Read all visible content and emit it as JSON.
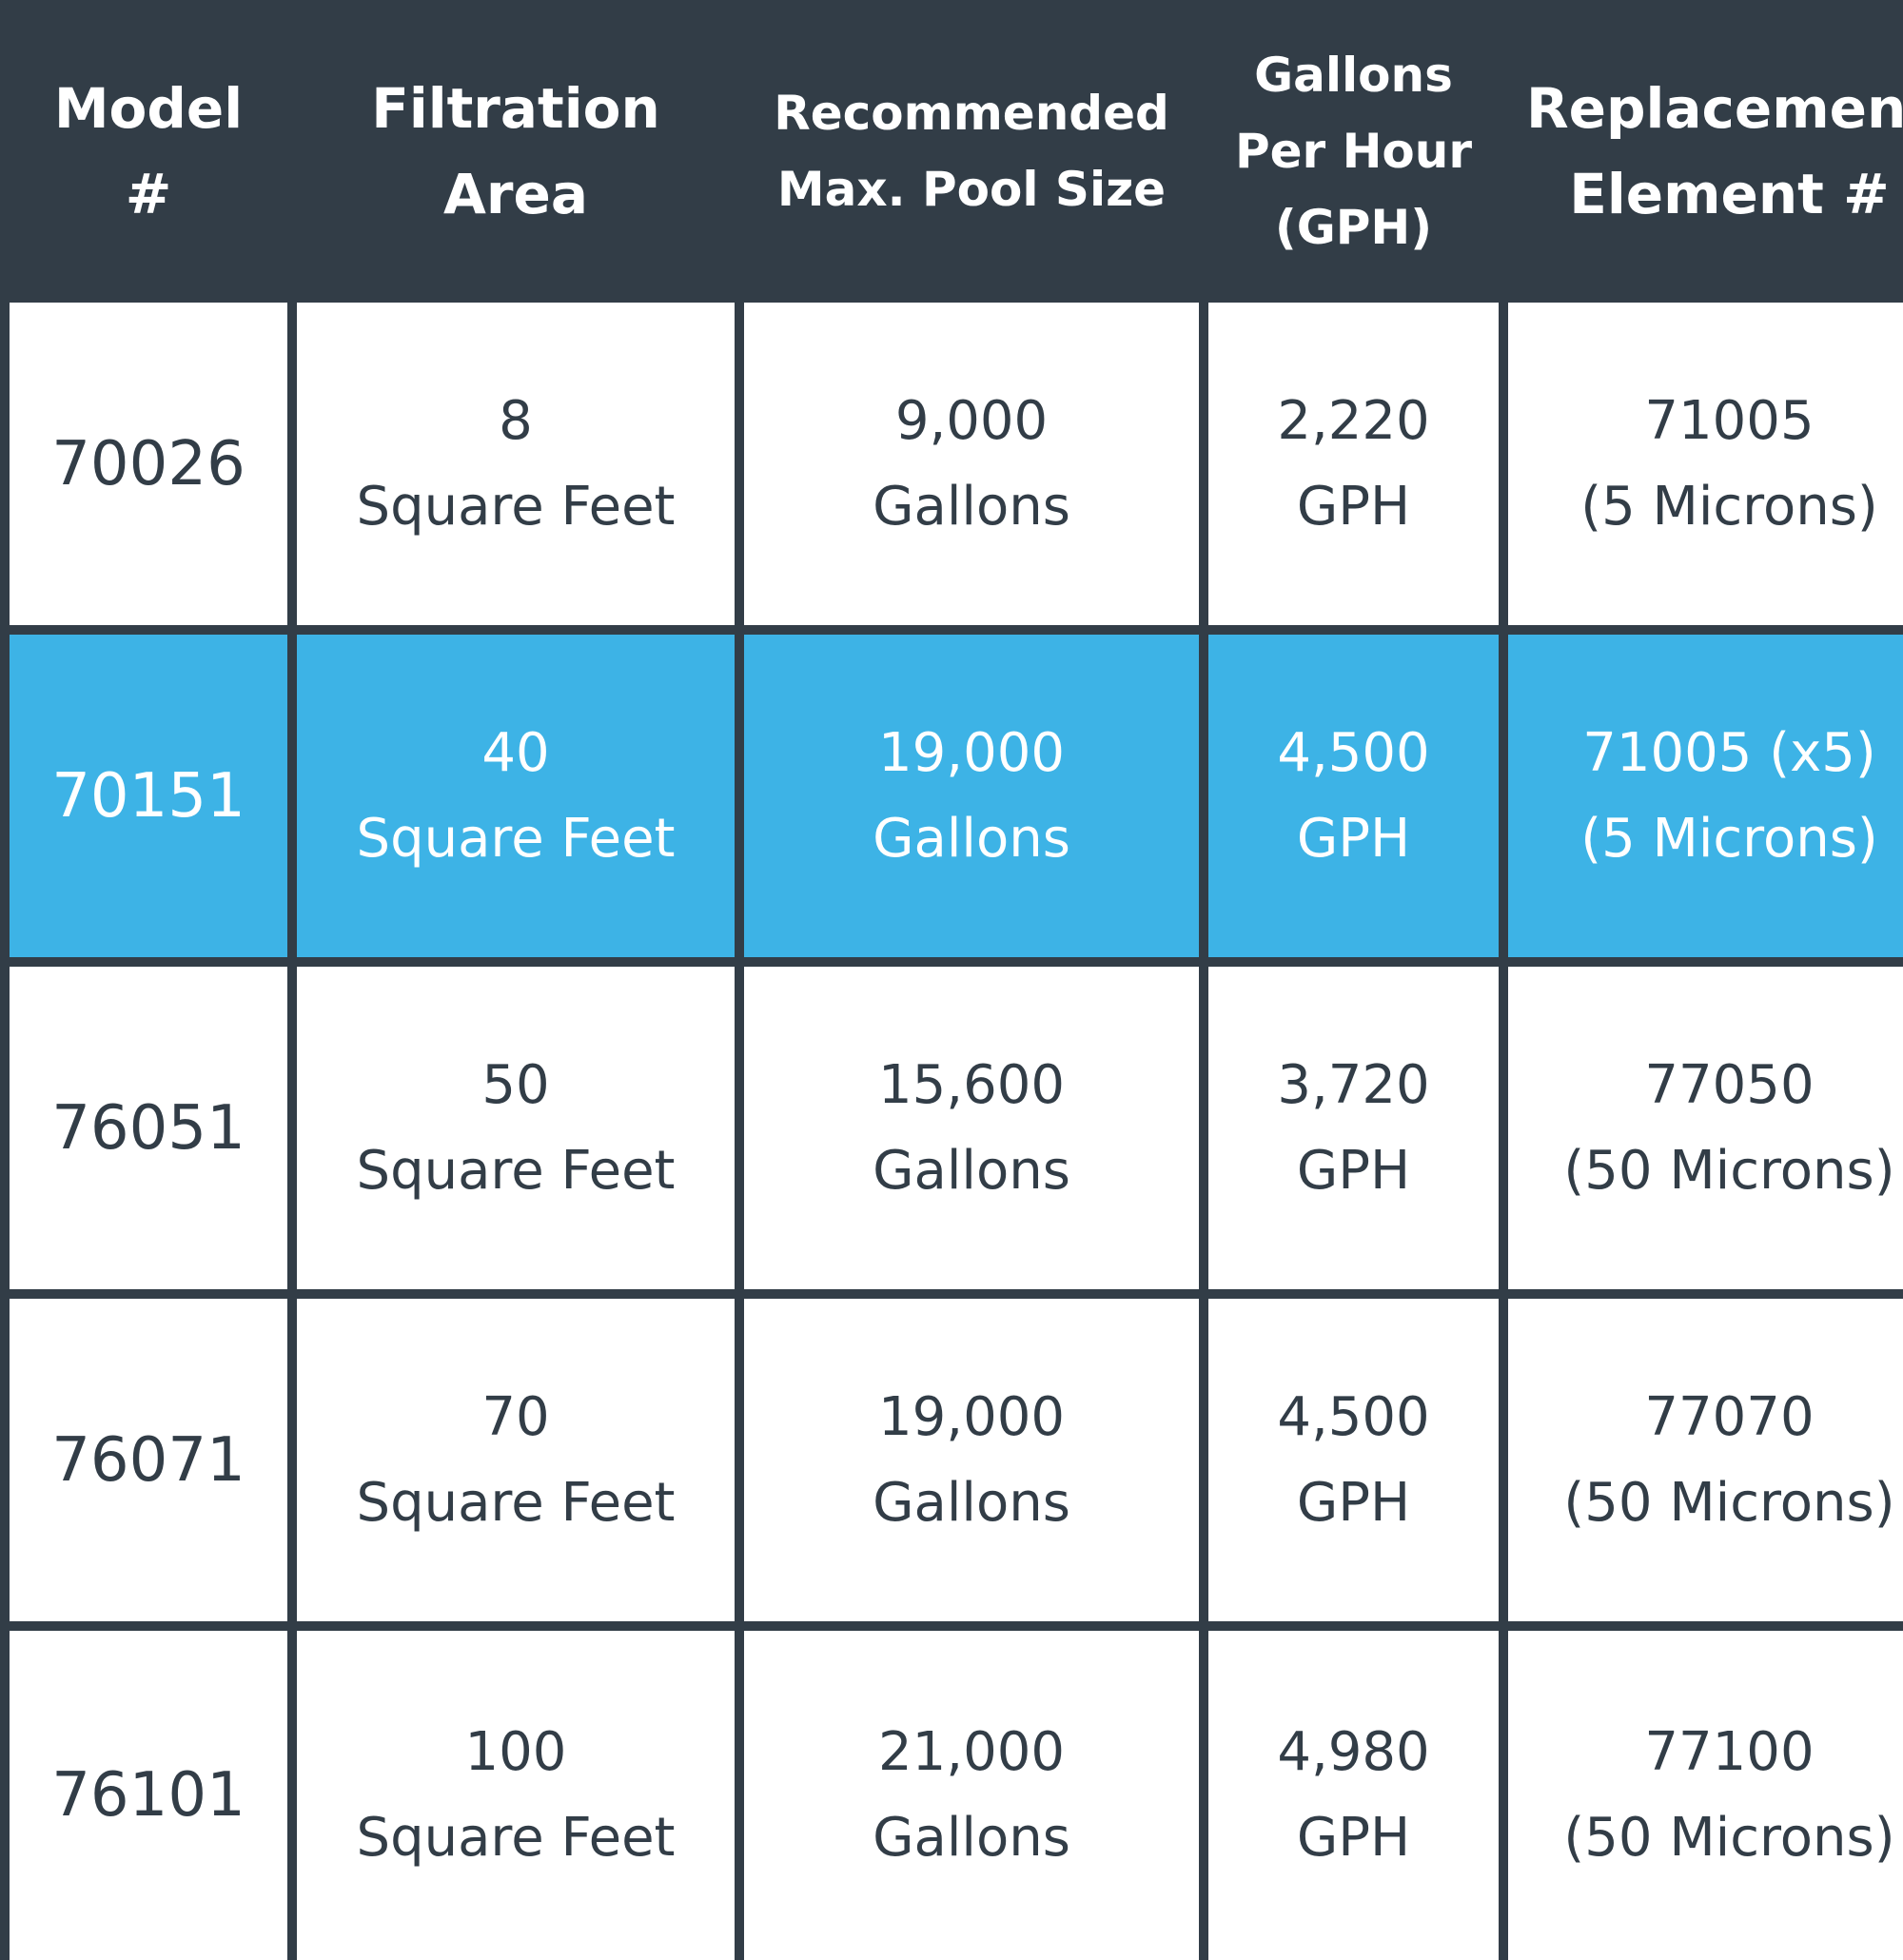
{
  "colors": {
    "header_bg": "#323d47",
    "header_text": "#ffffff",
    "cell_bg": "#ffffff",
    "cell_text": "#323d47",
    "highlight_bg": "#3db3e6",
    "highlight_text": "#ffffff",
    "grid_lines": "#323d47"
  },
  "headers": [
    [
      "Model",
      "#"
    ],
    [
      "Filtration",
      "Area"
    ],
    [
      "Recommended",
      "Max. Pool Size"
    ],
    [
      "Gallons",
      "Per Hour",
      "(GPH)"
    ],
    [
      "Replacement",
      "Element #"
    ]
  ],
  "rows": [
    {
      "model": "70026",
      "area": [
        "8",
        "Square Feet"
      ],
      "pool": [
        "9,000",
        "Gallons"
      ],
      "gph": [
        "2,220",
        "GPH"
      ],
      "element": [
        "71005",
        "(5 Microns)"
      ],
      "highlighted": false
    },
    {
      "model": "70151",
      "area": [
        "40",
        "Square Feet"
      ],
      "pool": [
        "19,000",
        "Gallons"
      ],
      "gph": [
        "4,500",
        "GPH"
      ],
      "element": [
        "71005 (x5)",
        "(5 Microns)"
      ],
      "highlighted": true
    },
    {
      "model": "76051",
      "area": [
        "50",
        "Square Feet"
      ],
      "pool": [
        "15,600",
        "Gallons"
      ],
      "gph": [
        "3,720",
        "GPH"
      ],
      "element": [
        "77050",
        "(50 Microns)"
      ],
      "highlighted": false
    },
    {
      "model": "76071",
      "area": [
        "70",
        "Square Feet"
      ],
      "pool": [
        "19,000",
        "Gallons"
      ],
      "gph": [
        "4,500",
        "GPH"
      ],
      "element": [
        "77070",
        "(50 Microns)"
      ],
      "highlighted": false
    },
    {
      "model": "76101",
      "area": [
        "100",
        "Square Feet"
      ],
      "pool": [
        "21,000",
        "Gallons"
      ],
      "gph": [
        "4,980",
        "GPH"
      ],
      "element": [
        "77100",
        "(50 Microns)"
      ],
      "highlighted": false
    }
  ]
}
